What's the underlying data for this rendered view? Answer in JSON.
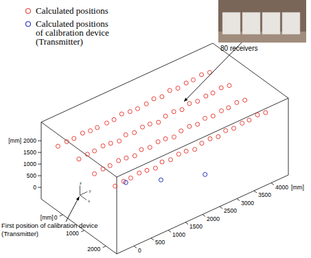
{
  "chart_data": {
    "type": "scatter3d",
    "xlabel": "[mm]",
    "ylabel": "[mm]",
    "zlabel": "[mm]",
    "xlim": [
      -1000,
      2500
    ],
    "ylim": [
      -500,
      4500
    ],
    "zlim": [
      -500,
      2800
    ],
    "xticks": [
      0,
      1000,
      2000
    ],
    "yticks": [
      0,
      500,
      1000,
      1500,
      2000,
      2500,
      3000,
      3500,
      4000
    ],
    "zticks": [
      0,
      500,
      1000,
      1500,
      2000
    ],
    "origin_axes": [
      "z",
      "x",
      "y"
    ],
    "annotations": [
      {
        "text": "80 receivers"
      },
      {
        "text": "First position of calibration device\n(Transmitter)"
      }
    ],
    "series": [
      {
        "name": "Calculated positions",
        "color": "#e8403a",
        "marker": "o",
        "x": [
          -620,
          -580,
          -610,
          -590,
          -600,
          -630,
          -570,
          -600,
          -610,
          -590,
          -620,
          -580,
          -600,
          -590,
          -610,
          -600,
          -580,
          -620,
          -600,
          -590,
          190,
          220,
          180,
          210,
          200,
          230,
          170,
          200,
          210,
          190,
          220,
          180,
          200,
          210,
          190,
          200,
          220,
          180,
          200,
          210,
          990,
          1020,
          980,
          1010,
          1000,
          1030,
          970,
          1000,
          1010,
          990,
          1020,
          980,
          1000,
          1010,
          990,
          1000,
          1020,
          980,
          1000,
          1010,
          1790,
          1820,
          1780,
          1810,
          1800,
          1830,
          1770,
          1800,
          1810,
          1790,
          1820,
          1780,
          1800,
          1810,
          1790,
          1800,
          1820,
          1780,
          1800,
          1810
        ],
        "y": [
          -250,
          -20,
          210,
          450,
          680,
          900,
          1140,
          1370,
          1600,
          1830,
          2070,
          2300,
          2530,
          2760,
          3000,
          3230,
          3460,
          3690,
          3920,
          4150,
          -150,
          80,
          310,
          540,
          770,
          1000,
          1230,
          1460,
          1690,
          1920,
          2150,
          2380,
          2610,
          2840,
          3070,
          3300,
          3530,
          3760,
          3990,
          4220,
          -200,
          30,
          260,
          490,
          720,
          950,
          1180,
          1410,
          1640,
          1870,
          2100,
          2330,
          2560,
          2790,
          3020,
          3250,
          3480,
          3710,
          3940,
          4170,
          -100,
          130,
          360,
          590,
          820,
          1050,
          1280,
          1510,
          1740,
          1970,
          2200,
          2430,
          2660,
          2890,
          3120,
          3350,
          3580,
          3810,
          4040,
          4270
        ],
        "z": [
          1850,
          1920,
          1880,
          1960,
          1900,
          1870,
          1940,
          1910,
          1990,
          1950,
          1890,
          1970,
          2020,
          1960,
          2050,
          2000,
          2080,
          2030,
          2110,
          2060,
          1780,
          1850,
          1810,
          1890,
          1840,
          1800,
          1870,
          1830,
          1920,
          1880,
          1820,
          1900,
          1950,
          1890,
          1980,
          1930,
          2010,
          1960,
          2040,
          1990,
          1720,
          1790,
          1750,
          1830,
          1780,
          1740,
          1810,
          1770,
          1860,
          1820,
          1760,
          1840,
          1890,
          1830,
          1920,
          1870,
          1950,
          1900,
          1980,
          1930,
          1660,
          1730,
          1690,
          1770,
          1720,
          1680,
          1750,
          1710,
          1800,
          1760,
          1700,
          1780,
          1830,
          1770,
          1860,
          1810,
          1890,
          1840,
          1920,
          1870
        ]
      },
      {
        "name": "Calculated positions\nof calibration device\n(Transmitter)",
        "color": "#2233bb",
        "marker": "o",
        "x": [
          330,
          860,
          1440
        ],
        "y": [
          1130,
          1820,
          2740
        ],
        "z": [
          0,
          0,
          0
        ]
      }
    ]
  }
}
